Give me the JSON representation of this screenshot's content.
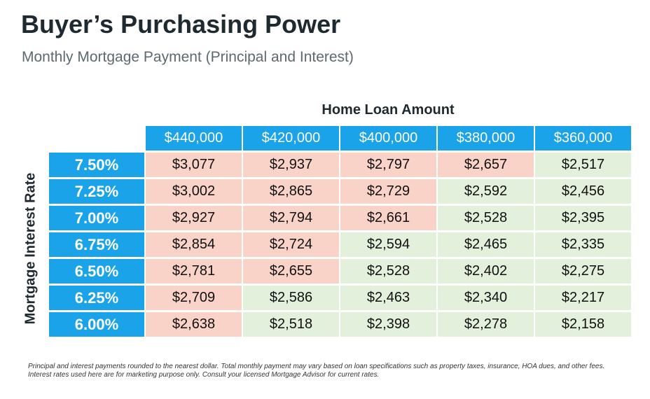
{
  "title": "Buyer’s Purchasing Power",
  "subtitle": "Monthly Mortgage Payment (Principal and Interest)",
  "column_header_title": "Home Loan Amount",
  "row_header_title": "Mortgage  Interest Rate",
  "footnote": "Principal and interest payments rounded to the nearest dollar. Total monthly payment may vary based on loan specifications such as property taxes, insurance, HOA dues, and other fees. Interest rates used here are for marketing purpose only. Consult your licensed Mortgage Advisor for current rates.",
  "colors": {
    "header_blue": "#1aa3e8",
    "over_budget": "#f9d2c8",
    "within_budget": "#e2f0dc"
  },
  "chart_data": {
    "type": "table",
    "columns": [
      "$440,000",
      "$420,000",
      "$400,000",
      "$380,000",
      "$360,000"
    ],
    "rows": [
      {
        "rate": "7.50%",
        "values": [
          "$3,077",
          "$2,937",
          "$2,797",
          "$2,657",
          "$2,517"
        ],
        "status": [
          "over",
          "over",
          "over",
          "over",
          "within"
        ]
      },
      {
        "rate": "7.25%",
        "values": [
          "$3,002",
          "$2,865",
          "$2,729",
          "$2,592",
          "$2,456"
        ],
        "status": [
          "over",
          "over",
          "over",
          "within",
          "within"
        ]
      },
      {
        "rate": "7.00%",
        "values": [
          "$2,927",
          "$2,794",
          "$2,661",
          "$2,528",
          "$2,395"
        ],
        "status": [
          "over",
          "over",
          "over",
          "within",
          "within"
        ]
      },
      {
        "rate": "6.75%",
        "values": [
          "$2,854",
          "$2,724",
          "$2,594",
          "$2,465",
          "$2,335"
        ],
        "status": [
          "over",
          "over",
          "within",
          "within",
          "within"
        ]
      },
      {
        "rate": "6.50%",
        "values": [
          "$2,781",
          "$2,655",
          "$2,528",
          "$2,402",
          "$2,275"
        ],
        "status": [
          "over",
          "over",
          "within",
          "within",
          "within"
        ]
      },
      {
        "rate": "6.25%",
        "values": [
          "$2,709",
          "$2,586",
          "$2,463",
          "$2,340",
          "$2,217"
        ],
        "status": [
          "over",
          "within",
          "within",
          "within",
          "within"
        ]
      },
      {
        "rate": "6.00%",
        "values": [
          "$2,638",
          "$2,518",
          "$2,398",
          "$2,278",
          "$2,158"
        ],
        "status": [
          "over",
          "within",
          "within",
          "within",
          "within"
        ]
      }
    ]
  }
}
